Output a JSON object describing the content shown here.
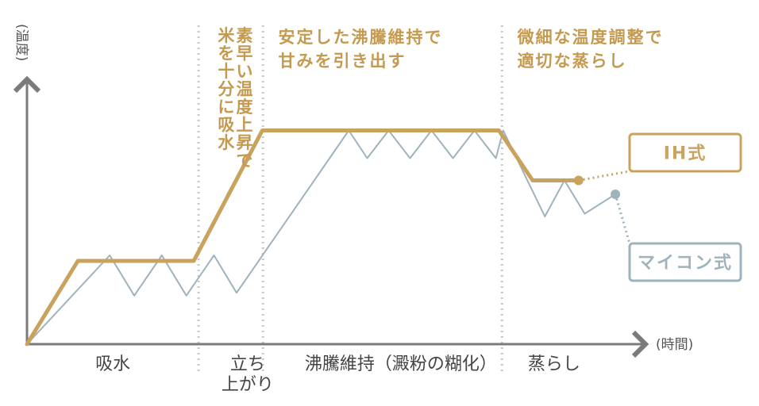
{
  "chart_data": {
    "type": "line",
    "title": "",
    "ylabel": "(温度)",
    "xlabel": "(時間)",
    "colors": {
      "ih": "#c9a25e",
      "micom": "#9fb3bd",
      "annotation": "#c49a50",
      "axis": "#7b7b7b",
      "divider": "#c8c8c8"
    },
    "xlim": [
      0,
      100
    ],
    "ylim": [
      0,
      100
    ],
    "phases": [
      {
        "label": "吸水",
        "x": 14
      },
      {
        "label": "立ち上がり",
        "lines": [
          "立ち",
          "上がり"
        ],
        "x": 36
      },
      {
        "label": "沸騰維持（澱粉の糊化）",
        "x": 61
      },
      {
        "label": "蒸らし",
        "x": 86
      }
    ],
    "dividers": [
      28,
      38.5,
      77.5
    ],
    "annotations": [
      {
        "lines": [
          "米を十分に吸水"
        ],
        "vertical": true,
        "x": 32.5
      },
      {
        "lines": [
          "素早い温度上昇で"
        ],
        "vertical": true,
        "x": 35.5
      },
      {
        "lines": [
          "安定した沸騰維持で",
          "甘みを引き出す"
        ],
        "x": 41
      },
      {
        "lines": [
          "微細な温度調整で",
          "適切な蒸らし"
        ],
        "x": 80
      }
    ],
    "series": [
      {
        "name": "IH式",
        "key": "ih",
        "points": [
          [
            0,
            0
          ],
          [
            8.3,
            30
          ],
          [
            27.2,
            30
          ],
          [
            38.4,
            77
          ],
          [
            77,
            77
          ],
          [
            82.5,
            59
          ],
          [
            90,
            59
          ]
        ]
      },
      {
        "name": "マイコン式",
        "key": "micom",
        "points": [
          [
            0,
            0
          ],
          [
            13.5,
            32
          ],
          [
            17.5,
            17.5
          ],
          [
            22,
            32
          ],
          [
            26,
            17.5
          ],
          [
            30.5,
            32
          ],
          [
            34.2,
            18.5
          ],
          [
            52.5,
            77
          ],
          [
            55.5,
            67
          ],
          [
            59,
            77
          ],
          [
            62.5,
            67
          ],
          [
            66,
            77
          ],
          [
            69.5,
            67
          ],
          [
            73,
            77
          ],
          [
            76.5,
            67
          ],
          [
            77.7,
            77
          ],
          [
            84.5,
            46
          ],
          [
            87.7,
            59
          ],
          [
            91,
            47
          ],
          [
            96,
            54
          ]
        ]
      }
    ],
    "legend": [
      {
        "text": "IH式",
        "key": "ih"
      },
      {
        "text": "マイコン式",
        "key": "micom"
      }
    ]
  }
}
